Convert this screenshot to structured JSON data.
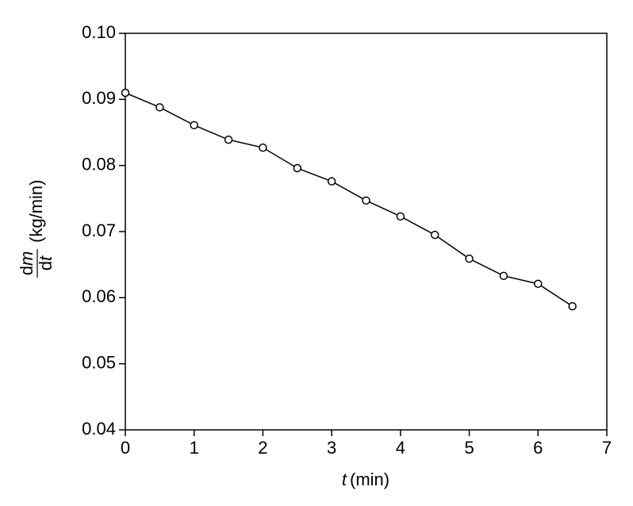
{
  "chart_data": {
    "type": "line",
    "xlabel": {
      "symbol": "t",
      "unit": "(min)"
    },
    "ylabel": {
      "numerator": [
        "d",
        "m"
      ],
      "denominator": [
        "d",
        "t"
      ],
      "unit": "(kg/min)"
    },
    "x": [
      0,
      0.5,
      1,
      1.5,
      2,
      2.5,
      3,
      3.5,
      4,
      4.5,
      5,
      5.5,
      6,
      6.5
    ],
    "series": [
      {
        "color": "#000000",
        "values": [
          0.091,
          0.0888,
          0.0861,
          0.0839,
          0.0827,
          0.0796,
          0.0776,
          0.0747,
          0.0723,
          0.0695,
          0.0659,
          0.0633,
          0.0621,
          0.0587
        ]
      }
    ],
    "xlim": [
      0,
      7
    ],
    "xticks": [
      0,
      1,
      2,
      3,
      4,
      5,
      6,
      7
    ],
    "ylim": [
      0.04,
      0.1
    ],
    "yticks": [
      0.04,
      0.05,
      0.06,
      0.07,
      0.08,
      0.09,
      {
        "value": 0.1,
        "label": "0.10"
      }
    ],
    "grid": false,
    "marker": "open-circle"
  }
}
